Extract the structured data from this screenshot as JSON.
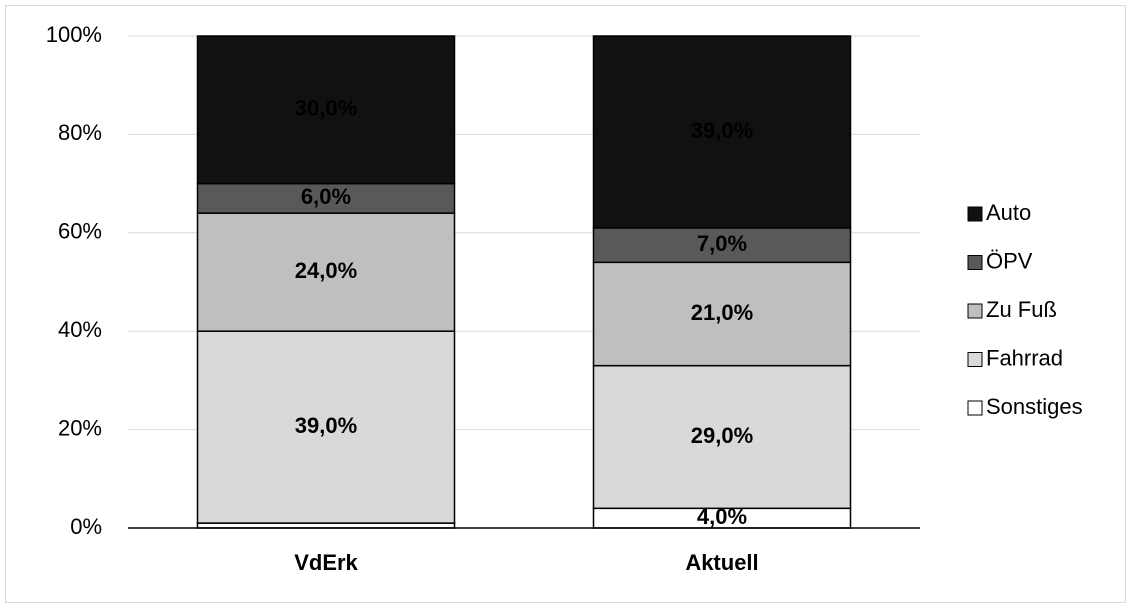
{
  "chart_data": {
    "type": "stacked_bar",
    "categories": [
      "VdErk",
      "Aktuell"
    ],
    "series": [
      {
        "name": "Sonstiges",
        "color": "#ffffff",
        "values": [
          1,
          4
        ],
        "value_labels": [
          null,
          "4,0%"
        ]
      },
      {
        "name": "Fahrrad",
        "color": "#d9d9d9",
        "values": [
          39,
          29
        ],
        "value_labels": [
          "39,0%",
          "29,0%"
        ]
      },
      {
        "name": "Zu Fuß",
        "color": "#bfbfbf",
        "values": [
          24,
          21
        ],
        "value_labels": [
          "24,0%",
          "21,0%"
        ]
      },
      {
        "name": "ÖPV",
        "color": "#595959",
        "values": [
          6,
          7
        ],
        "value_labels": [
          "6,0%",
          "7,0%"
        ]
      },
      {
        "name": "Auto",
        "color": "#111111",
        "values": [
          30,
          39
        ],
        "value_labels": [
          "30,0%",
          "39,0%"
        ]
      }
    ],
    "ylim": [
      0,
      100
    ],
    "yticks": [
      {
        "value": 0,
        "label": "0%"
      },
      {
        "value": 20,
        "label": "20%"
      },
      {
        "value": 40,
        "label": "40%"
      },
      {
        "value": 60,
        "label": "60%"
      },
      {
        "value": 80,
        "label": "80%"
      },
      {
        "value": 100,
        "label": "100%"
      }
    ],
    "grid": true,
    "legend": "right"
  }
}
